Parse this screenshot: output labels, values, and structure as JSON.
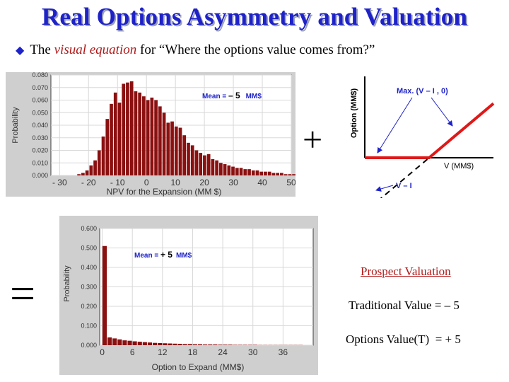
{
  "title": "Real Options Asymmetry and Valuation",
  "subtitle": {
    "prefix": "The ",
    "emphasis": "visual equation",
    "suffix": " for “Where the options value comes from?”"
  },
  "operators": {
    "plus": "+",
    "equals": "="
  },
  "chart_data": [
    {
      "type": "bar",
      "ylabel": "Probability",
      "xlabel": "NPV for the Expansion (MM $)",
      "annotation": {
        "label": "Mean = ",
        "value": "– 5",
        "unit": "MM$"
      },
      "ylim": [
        0,
        0.08
      ],
      "xlim": [
        -33,
        50
      ],
      "y_ticks": [
        "0.000",
        "0.010",
        "0.020",
        "0.030",
        "0.040",
        "0.050",
        "0.060",
        "0.070",
        "0.080"
      ],
      "x_ticks": [
        "- 30",
        "- 20",
        "- 10",
        "0",
        "10",
        "20",
        "30",
        "40",
        "50"
      ],
      "bin_start": -24,
      "bin_width": 1.4,
      "values": [
        0.001,
        0.002,
        0.004,
        0.008,
        0.012,
        0.02,
        0.031,
        0.045,
        0.057,
        0.066,
        0.058,
        0.073,
        0.074,
        0.075,
        0.067,
        0.066,
        0.063,
        0.06,
        0.062,
        0.06,
        0.055,
        0.05,
        0.042,
        0.043,
        0.039,
        0.038,
        0.032,
        0.026,
        0.024,
        0.02,
        0.018,
        0.016,
        0.017,
        0.013,
        0.012,
        0.01,
        0.009,
        0.008,
        0.007,
        0.006,
        0.006,
        0.005,
        0.005,
        0.004,
        0.004,
        0.003,
        0.003,
        0.003,
        0.002,
        0.002,
        0.002,
        0.001,
        0.001,
        0.001,
        0.001
      ]
    },
    {
      "type": "line",
      "xlabel": "V (MM$)",
      "ylabel": "Option (MM$)",
      "series": [
        {
          "name": "Max. (V – I , 0)",
          "x": [
            0,
            100,
            200
          ],
          "y": [
            0,
            0,
            100
          ]
        },
        {
          "name": "V – I",
          "x": [
            20,
            100
          ],
          "y": [
            -80,
            0
          ]
        }
      ],
      "xlim": [
        0,
        200
      ],
      "ylim": [
        -100,
        150
      ]
    },
    {
      "type": "bar",
      "ylabel": "Probability",
      "xlabel": "Option to Expand (MM$)",
      "annotation": {
        "label": "Mean = ",
        "value": "+ 5",
        "unit": "MM$"
      },
      "ylim": [
        0,
        0.6
      ],
      "xlim": [
        -0.5,
        42
      ],
      "y_ticks": [
        "0.000",
        "0.100",
        "0.200",
        "0.300",
        "0.400",
        "0.500",
        "0.600"
      ],
      "x_ticks": [
        "0",
        "6",
        "12",
        "18",
        "24",
        "30",
        "36"
      ],
      "bin_start": 0,
      "bin_width": 1,
      "values": [
        0.51,
        0.04,
        0.035,
        0.03,
        0.025,
        0.023,
        0.02,
        0.018,
        0.016,
        0.014,
        0.012,
        0.011,
        0.01,
        0.009,
        0.008,
        0.007,
        0.006,
        0.006,
        0.005,
        0.005,
        0.004,
        0.004,
        0.004,
        0.003,
        0.003,
        0.003,
        0.002,
        0.002,
        0.002,
        0.002,
        0.002,
        0.001,
        0.001,
        0.001,
        0.001,
        0.001,
        0.001,
        0.001,
        0.001,
        0.001
      ]
    }
  ],
  "prospect": {
    "heading": "Prospect Valuation",
    "traditional_label": "Traditional Value = ",
    "traditional_value": "– 5",
    "options_label": "Options Value(T)  = ",
    "options_value": "+ 5"
  },
  "colors": {
    "title": "#1e22c8",
    "bar": "#8b1010",
    "option_line": "#e01818",
    "accent_text": "#b01818",
    "mean_label": "#1e22c8"
  }
}
